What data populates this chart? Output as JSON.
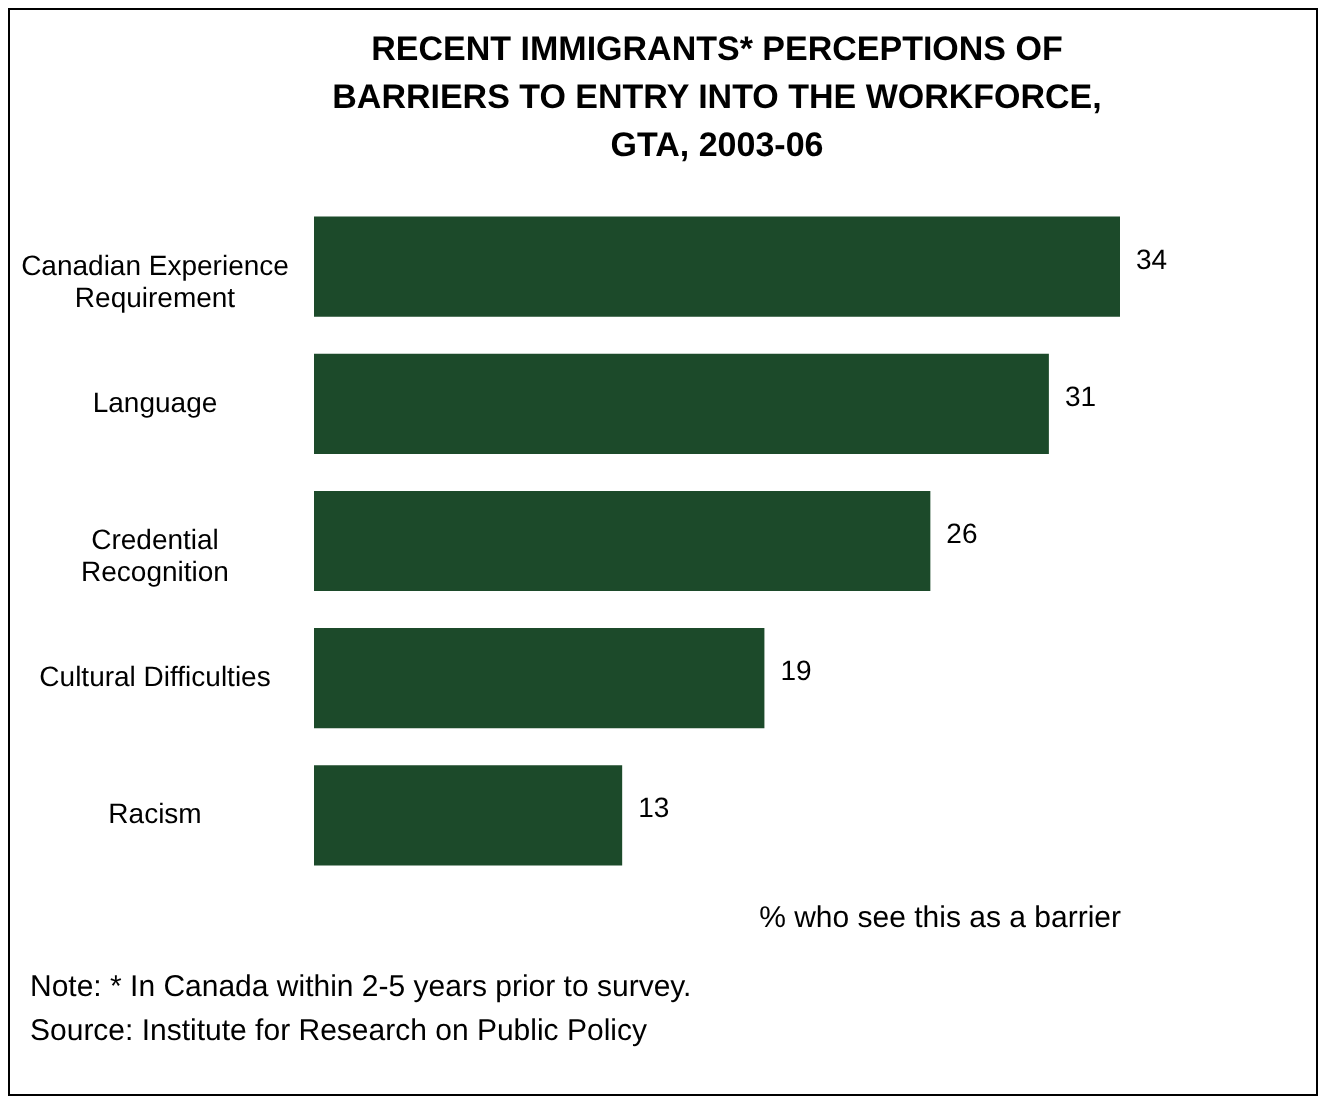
{
  "chart_data": {
    "type": "bar",
    "orientation": "horizontal",
    "title": "RECENT IMMIGRANTS* PERCEPTIONS OF\nBARRIERS TO ENTRY INTO THE WORKFORCE,\nGTA, 2003-06",
    "categories": [
      "Canadian Experience Requirement",
      "Language",
      "Credential Recognition",
      "Cultural Difficulties",
      "Racism"
    ],
    "values": [
      34,
      31,
      26,
      19,
      13
    ],
    "color": "#1c4a2a",
    "data_labels": true,
    "xlabel": "% who see this as a barrier",
    "annotations": [
      "Note: * In Canada within 2-5 years prior to survey.",
      "Source: Institute for Research on Public Policy"
    ]
  }
}
